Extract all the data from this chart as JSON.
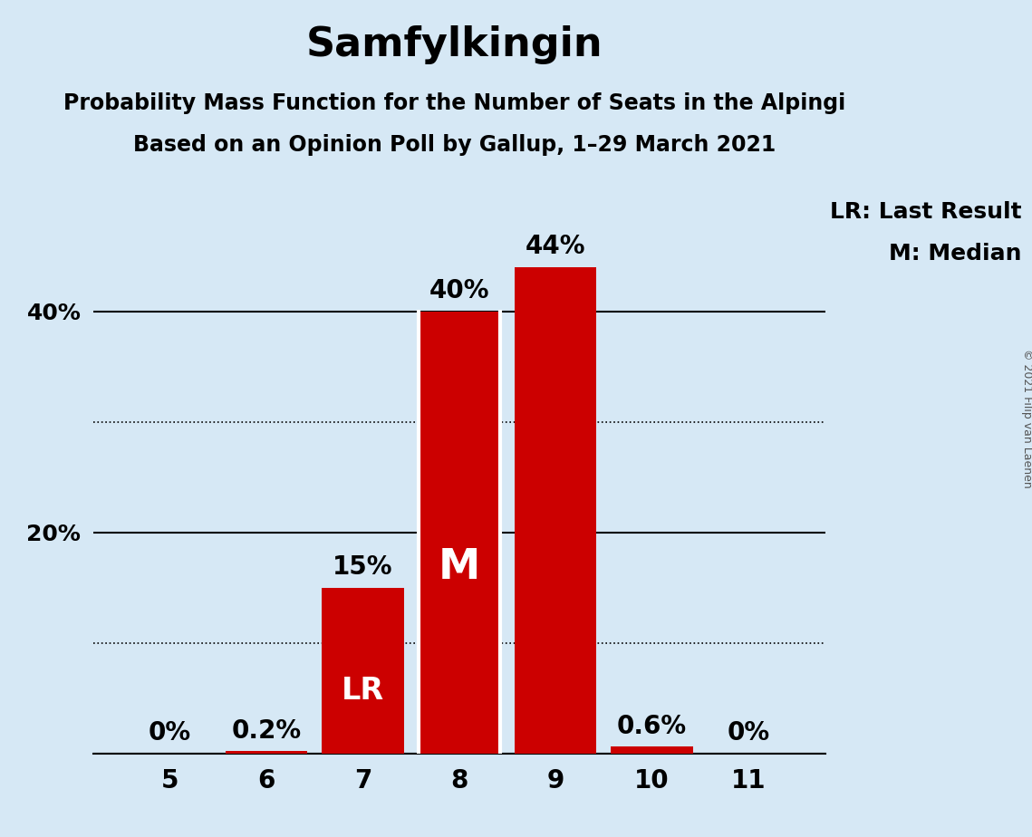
{
  "title": "Samfylkingin",
  "subtitle1": "Probability Mass Function for the Number of Seats in the Alpingi",
  "subtitle2": "Based on an Opinion Poll by Gallup, 1–29 March 2021",
  "copyright": "© 2021 Filip van Laenen",
  "seats": [
    5,
    6,
    7,
    8,
    9,
    10,
    11
  ],
  "probabilities": [
    0.0,
    0.2,
    15.0,
    40.0,
    44.0,
    0.6,
    0.0
  ],
  "bar_color": "#cc0000",
  "background_color": "#d6e8f5",
  "last_result_seat": 7,
  "median_seat": 8,
  "lr_label": "LR",
  "median_label": "M",
  "legend_lr": "LR: Last Result",
  "legend_m": "M: Median",
  "ylim": [
    0,
    50
  ],
  "bar_width": 0.85,
  "title_fontsize": 32,
  "subtitle_fontsize": 17,
  "tick_fontsize": 18,
  "bar_label_fontsize": 20,
  "inner_label_fontsize": 24,
  "legend_fontsize": 18,
  "copyright_fontsize": 9,
  "ytick_labels_shown": [
    "40%",
    "20%"
  ],
  "ytick_positions_shown": [
    40,
    20
  ],
  "solid_lines": [
    0,
    20,
    40
  ],
  "dotted_lines": [
    10,
    30
  ]
}
